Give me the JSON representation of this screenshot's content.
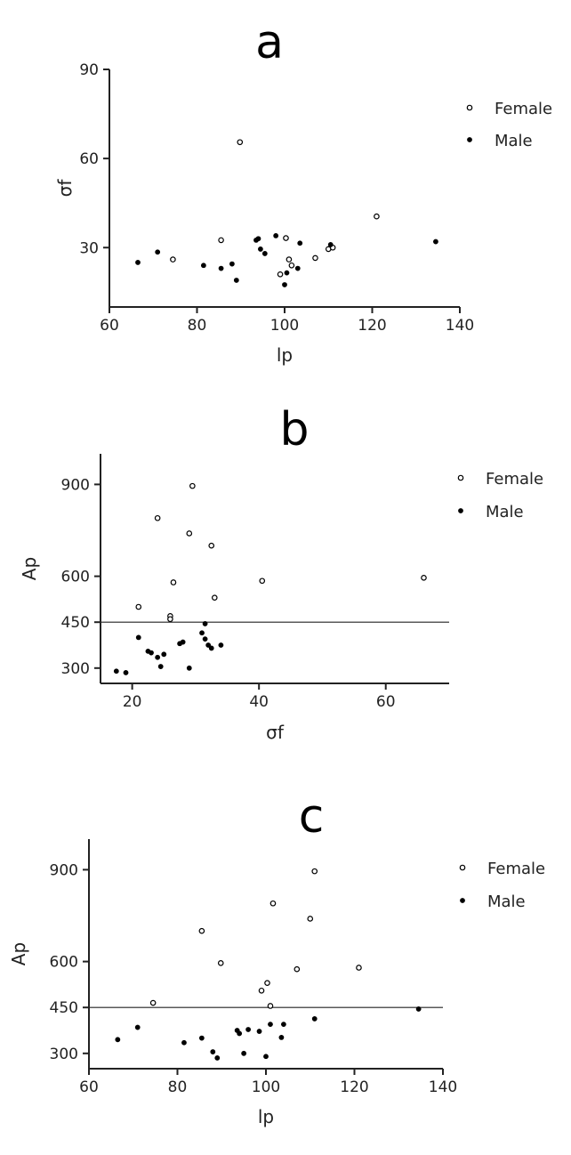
{
  "chart_data": [
    {
      "type": "scatter",
      "panel": "a",
      "xlabel": "lp",
      "ylabel": "σf",
      "xlim": [
        60,
        140
      ],
      "ylim": [
        10,
        90
      ],
      "xticks": [
        60,
        80,
        100,
        120,
        140
      ],
      "yticks": [
        30,
        60,
        90
      ],
      "legend": [
        "Female",
        "Male"
      ],
      "series": [
        {
          "name": "Female",
          "marker": "open-circle",
          "points": [
            [
              74.5,
              26
            ],
            [
              85.5,
              32.5
            ],
            [
              89.8,
              65.5
            ],
            [
              99,
              21
            ],
            [
              100.3,
              33.2
            ],
            [
              101,
              26
            ],
            [
              101.6,
              24
            ],
            [
              107,
              26.5
            ],
            [
              110,
              29.5
            ],
            [
              111,
              30
            ],
            [
              121,
              40.5
            ]
          ]
        },
        {
          "name": "Male",
          "marker": "filled-circle",
          "points": [
            [
              66.5,
              25
            ],
            [
              71,
              28.5
            ],
            [
              81.5,
              24
            ],
            [
              85.5,
              23
            ],
            [
              88,
              24.5
            ],
            [
              89,
              19
            ],
            [
              93.5,
              32.5
            ],
            [
              94,
              33
            ],
            [
              94.5,
              29.5
            ],
            [
              95.5,
              28
            ],
            [
              98,
              34
            ],
            [
              100,
              17.5
            ],
            [
              100.5,
              21.5
            ],
            [
              103,
              23
            ],
            [
              103.5,
              31.5
            ],
            [
              110.5,
              31
            ],
            [
              134.5,
              32
            ]
          ]
        }
      ]
    },
    {
      "type": "scatter",
      "panel": "b",
      "xlabel": "σf",
      "ylabel": "Ap",
      "xlim": [
        15,
        70
      ],
      "ylim": [
        250,
        1000
      ],
      "xticks": [
        20,
        40,
        60
      ],
      "yticks": [
        300,
        450,
        600,
        900
      ],
      "hline": 450,
      "legend": [
        "Female",
        "Male"
      ],
      "series": [
        {
          "name": "Female",
          "marker": "open-circle",
          "points": [
            [
              21,
              500
            ],
            [
              24,
              790
            ],
            [
              26,
              470
            ],
            [
              26,
              460
            ],
            [
              26.5,
              580
            ],
            [
              29,
              740
            ],
            [
              29.5,
              895
            ],
            [
              32.5,
              700
            ],
            [
              33,
              530
            ],
            [
              40.5,
              585
            ],
            [
              66,
              595
            ]
          ]
        },
        {
          "name": "Male",
          "marker": "filled-circle",
          "points": [
            [
              17.5,
              290
            ],
            [
              19,
              285
            ],
            [
              21,
              400
            ],
            [
              22.5,
              355
            ],
            [
              23,
              350
            ],
            [
              24,
              335
            ],
            [
              24.5,
              305
            ],
            [
              25,
              345
            ],
            [
              27.5,
              380
            ],
            [
              28,
              385
            ],
            [
              29,
              300
            ],
            [
              31,
              415
            ],
            [
              31.5,
              395
            ],
            [
              31.5,
              445
            ],
            [
              32,
              375
            ],
            [
              32.5,
              365
            ],
            [
              34,
              375
            ]
          ]
        }
      ]
    },
    {
      "type": "scatter",
      "panel": "c",
      "xlabel": "lp",
      "ylabel": "Ap",
      "xlim": [
        60,
        140
      ],
      "ylim": [
        250,
        1000
      ],
      "xticks": [
        60,
        80,
        100,
        120,
        140
      ],
      "yticks": [
        300,
        450,
        600,
        900
      ],
      "hline": 450,
      "legend": [
        "Female",
        "Male"
      ],
      "series": [
        {
          "name": "Female",
          "marker": "open-circle",
          "points": [
            [
              74.5,
              465
            ],
            [
              85.5,
              700
            ],
            [
              89.8,
              595
            ],
            [
              99,
              505
            ],
            [
              100.3,
              530
            ],
            [
              101,
              455
            ],
            [
              101.6,
              790
            ],
            [
              107,
              575
            ],
            [
              110,
              740
            ],
            [
              111,
              895
            ],
            [
              121,
              580
            ]
          ]
        },
        {
          "name": "Male",
          "marker": "filled-circle",
          "points": [
            [
              66.5,
              345
            ],
            [
              71,
              385
            ],
            [
              81.5,
              335
            ],
            [
              85.5,
              350
            ],
            [
              88,
              305
            ],
            [
              89,
              285
            ],
            [
              93.5,
              375
            ],
            [
              94,
              365
            ],
            [
              95,
              300
            ],
            [
              96,
              378
            ],
            [
              98.5,
              372
            ],
            [
              100,
              290
            ],
            [
              101,
              395
            ],
            [
              103.5,
              352
            ],
            [
              104,
              395
            ],
            [
              111,
              413
            ],
            [
              134.5,
              445
            ]
          ]
        }
      ]
    }
  ]
}
